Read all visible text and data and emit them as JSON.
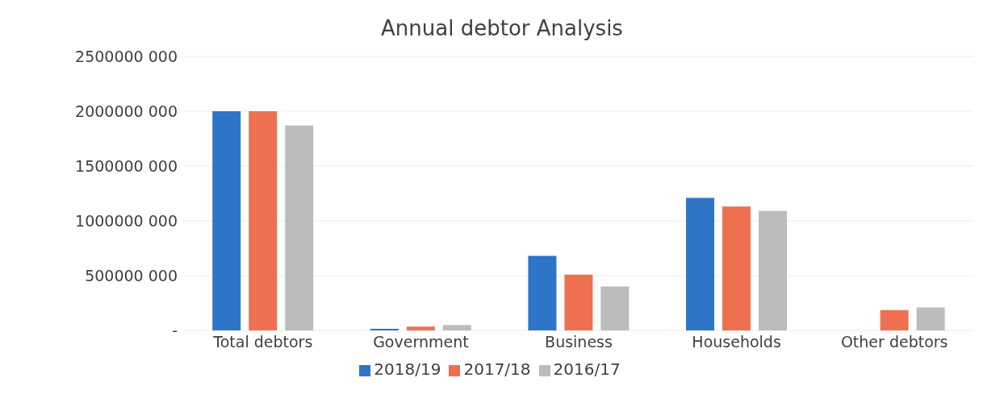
{
  "chart_data": {
    "type": "bar",
    "title": "Annual debtor Analysis",
    "categories": [
      "Total debtors",
      "Government",
      "Business",
      "Households",
      "Other debtors"
    ],
    "series": [
      {
        "name": "2018/19",
        "color": "#2e75c8",
        "values": [
          2000000000,
          15000000,
          680000000,
          1210000000,
          0
        ]
      },
      {
        "name": "2017/18",
        "color": "#ed7150",
        "values": [
          2000000000,
          35000000,
          510000000,
          1130000000,
          185000000
        ]
      },
      {
        "name": "2016/17",
        "color": "#bcbcbc",
        "values": [
          1870000000,
          50000000,
          400000000,
          1090000000,
          210000000
        ]
      }
    ],
    "ylim": [
      0,
      2500000000
    ],
    "yticks": [
      {
        "value": 0,
        "label": "-"
      },
      {
        "value": 500000000,
        "label": "500000 000"
      },
      {
        "value": 1000000000,
        "label": "1000000 000"
      },
      {
        "value": 1500000000,
        "label": "1500000 000"
      },
      {
        "value": 2000000000,
        "label": "2000000 000"
      },
      {
        "value": 2500000000,
        "label": "2500000 000"
      }
    ],
    "grid": "y",
    "legend": "bottom"
  }
}
